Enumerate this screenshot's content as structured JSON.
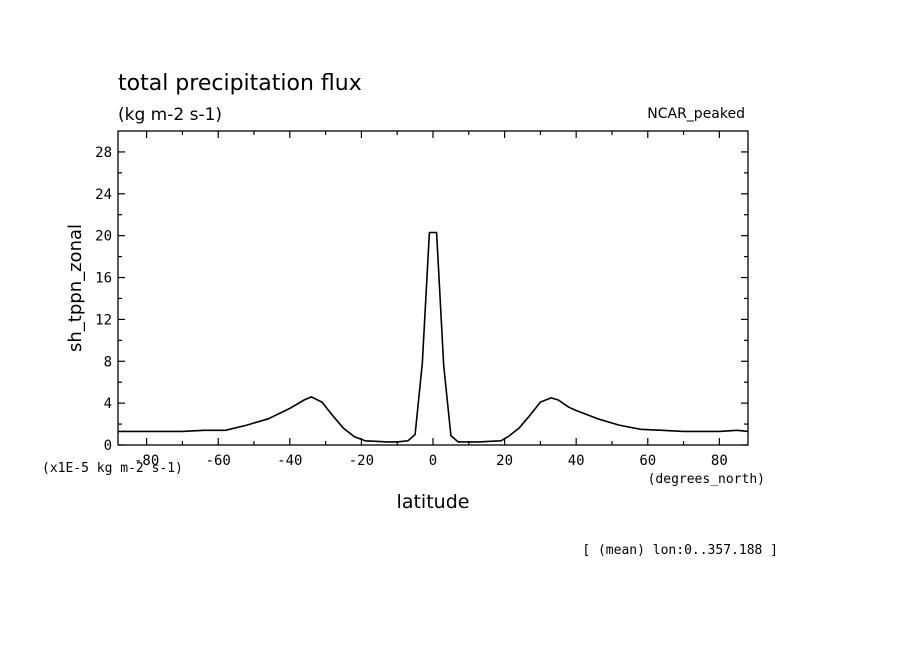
{
  "chart_data": {
    "type": "line",
    "title": "total precipitation flux",
    "subtitle": "(kg m-2 s-1)",
    "label_right": "NCAR_peaked",
    "ylabel": "sh_tppn_zonal",
    "xlabel": "latitude",
    "y_scale_note": "(x1E-5 kg m-2 s-1)",
    "x_unit": "(degrees_north)",
    "footer": "[ (mean) lon:0..357.188 ]",
    "xlim": [
      -88,
      88
    ],
    "ylim": [
      0,
      30
    ],
    "x_ticks": [
      -80,
      -60,
      -40,
      -20,
      0,
      20,
      40,
      60,
      80
    ],
    "x_tick_labels": [
      "-80",
      "-60",
      "-40",
      "-20",
      "0",
      "20",
      "40",
      "60",
      "80"
    ],
    "y_ticks": [
      0,
      4,
      8,
      12,
      16,
      20,
      24,
      28
    ],
    "y_tick_labels": [
      "0",
      "4",
      "8",
      "12",
      "16",
      "20",
      "24",
      "28"
    ],
    "grid": false,
    "series": [
      {
        "x": [
          -88,
          -80,
          -70,
          -64,
          -58,
          -52,
          -46,
          -40,
          -36,
          -34,
          -31,
          -28,
          -25,
          -22,
          -19,
          -16,
          -13,
          -10,
          -7,
          -5,
          -3,
          -1,
          1,
          3,
          5,
          7,
          10,
          13,
          16,
          19,
          21,
          24,
          27,
          30,
          33,
          35,
          38,
          40,
          46,
          52,
          58,
          64,
          70,
          80,
          85,
          88
        ],
        "y": [
          1.3,
          1.3,
          1.3,
          1.4,
          1.4,
          1.9,
          2.5,
          3.5,
          4.3,
          4.6,
          4.1,
          2.8,
          1.6,
          0.8,
          0.4,
          0.35,
          0.3,
          0.3,
          0.4,
          1.0,
          7.8,
          20.3,
          20.3,
          7.6,
          0.9,
          0.3,
          0.3,
          0.3,
          0.35,
          0.4,
          0.8,
          1.6,
          2.8,
          4.1,
          4.5,
          4.3,
          3.6,
          3.3,
          2.5,
          1.9,
          1.5,
          1.4,
          1.3,
          1.3,
          1.4,
          1.3
        ]
      }
    ]
  }
}
